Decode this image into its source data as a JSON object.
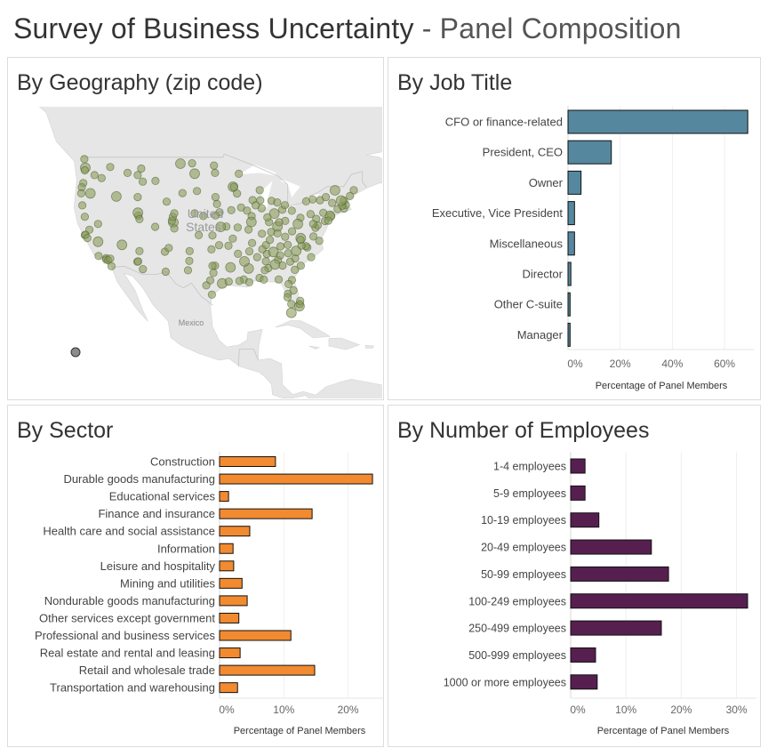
{
  "header": {
    "title_main": "Survey of Business Uncertainty",
    "title_sub": "- Panel Composition"
  },
  "panels": {
    "geography": "By Geography (zip code)",
    "job_title": "By Job Title",
    "sector": "By Sector",
    "employees": "By Number of Employees"
  },
  "map_labels": {
    "country": "United States",
    "neighbor": "Mexico"
  },
  "chart_data": [
    {
      "type": "scatter",
      "title": "By Geography (zip code)",
      "marker_color": "#8a9c5c",
      "unlocated_marker_color": "#8c8c8c",
      "points_lon_lat": [
        [
          -122.3,
          47.6
        ],
        [
          -122.4,
          47.25
        ],
        [
          -122.5,
          48.75
        ],
        [
          -122.7,
          45.5
        ],
        [
          -123,
          44.9
        ],
        [
          -123.1,
          44.05
        ],
        [
          -117.4,
          47.7
        ],
        [
          -116.2,
          43.6
        ],
        [
          -114,
          46.9
        ],
        [
          -108.5,
          45.8
        ],
        [
          -112,
          46.6
        ],
        [
          -111.3,
          47.5
        ],
        [
          -111,
          45.7
        ],
        [
          -111.9,
          40.76
        ],
        [
          -111.97,
          41.2
        ],
        [
          -111.66,
          40.23
        ],
        [
          -119.8,
          39.5
        ],
        [
          -121.5,
          38.6
        ],
        [
          -122.4,
          37.77
        ],
        [
          -122.27,
          37.8
        ],
        [
          -121.9,
          37.3
        ],
        [
          -119.8,
          36.7
        ],
        [
          -119.7,
          34.4
        ],
        [
          -118.2,
          34.05
        ],
        [
          -118.2,
          33.8
        ],
        [
          -117.8,
          33.7
        ],
        [
          -117.4,
          33.95
        ],
        [
          -117.16,
          32.7
        ],
        [
          -115.1,
          36.2
        ],
        [
          -112.07,
          33.45
        ],
        [
          -111.9,
          33.5
        ],
        [
          -110.97,
          32.2
        ],
        [
          -106.65,
          35.1
        ],
        [
          -105.9,
          35.7
        ],
        [
          -106.5,
          31.76
        ],
        [
          -104.99,
          39.74
        ],
        [
          -105.27,
          40.0
        ],
        [
          -104.8,
          38.8
        ],
        [
          -105.1,
          40.6
        ],
        [
          -104.8,
          41.1
        ],
        [
          -106.3,
          42.85
        ],
        [
          -103.2,
          44.08
        ],
        [
          -100.8,
          46.8
        ],
        [
          -96.8,
          46.9
        ],
        [
          -96.7,
          43.5
        ],
        [
          -95.9,
          41.26
        ],
        [
          -96.7,
          40.8
        ],
        [
          -97.3,
          37.7
        ],
        [
          -94.58,
          39.1
        ],
        [
          -95.7,
          39.05
        ],
        [
          -95.99,
          36.15
        ],
        [
          -97.5,
          35.47
        ],
        [
          -96.8,
          32.78
        ],
        [
          -97.3,
          32.75
        ],
        [
          -97.74,
          30.27
        ],
        [
          -98.5,
          29.42
        ],
        [
          -95.37,
          29.76
        ],
        [
          -97.4,
          27.8
        ],
        [
          -101.85,
          33.58
        ],
        [
          -101.8,
          35.2
        ],
        [
          -102.1,
          32.0
        ],
        [
          -97.1,
          31.55
        ],
        [
          -94.1,
          30.08
        ],
        [
          -93.75,
          32.5
        ],
        [
          -91.15,
          30.45
        ],
        [
          -90.07,
          29.95
        ],
        [
          -92.0,
          30.2
        ],
        [
          -92.29,
          34.75
        ],
        [
          -94.16,
          36.06
        ],
        [
          -90.05,
          35.15
        ],
        [
          -90.18,
          32.3
        ],
        [
          -86.8,
          33.52
        ],
        [
          -86.3,
          32.37
        ],
        [
          -88.04,
          30.7
        ],
        [
          -86.6,
          34.73
        ],
        [
          -86.78,
          36.16
        ],
        [
          -83.92,
          35.96
        ],
        [
          -85.3,
          35.05
        ],
        [
          -84.39,
          33.75
        ],
        [
          -81.1,
          32.08
        ],
        [
          -82.0,
          33.47
        ],
        [
          -81.03,
          34.0
        ],
        [
          -79.93,
          32.78
        ],
        [
          -82.4,
          34.85
        ],
        [
          -80.84,
          35.23
        ],
        [
          -78.64,
          35.78
        ],
        [
          -78.9,
          36.0
        ],
        [
          -79.79,
          36.07
        ],
        [
          -77.9,
          34.2
        ],
        [
          -76.29,
          36.85
        ],
        [
          -77.44,
          37.54
        ],
        [
          -79.94,
          37.27
        ],
        [
          -77.04,
          38.9
        ],
        [
          -76.6,
          39.29
        ],
        [
          -75.16,
          39.95
        ],
        [
          -79.99,
          40.44
        ],
        [
          -76.88,
          40.27
        ],
        [
          -74.0,
          40.71
        ],
        [
          -74.17,
          40.73
        ],
        [
          -72.68,
          41.76
        ],
        [
          -71.41,
          41.82
        ],
        [
          -71.06,
          42.36
        ],
        [
          -71.8,
          42.26
        ],
        [
          -70.26,
          43.66
        ],
        [
          -71.46,
          42.99
        ],
        [
          -73.2,
          44.48
        ],
        [
          -73.75,
          42.65
        ],
        [
          -76.15,
          43.05
        ],
        [
          -77.6,
          43.16
        ],
        [
          -78.88,
          42.89
        ],
        [
          -81.69,
          41.5
        ],
        [
          -82.99,
          39.96
        ],
        [
          -84.5,
          39.1
        ],
        [
          -84.19,
          39.76
        ],
        [
          -83.55,
          41.65
        ],
        [
          -83.05,
          42.33
        ],
        [
          -85.67,
          42.96
        ],
        [
          -84.55,
          42.73
        ],
        [
          -86.16,
          39.77
        ],
        [
          -85.14,
          41.08
        ],
        [
          -85.76,
          38.25
        ],
        [
          -84.5,
          38.04
        ],
        [
          -87.63,
          41.88
        ],
        [
          -87.9,
          43.04
        ],
        [
          -89.4,
          43.07
        ],
        [
          -88.0,
          44.5
        ],
        [
          -93.27,
          44.98
        ],
        [
          -93.09,
          44.95
        ],
        [
          -92.46,
          44.02
        ],
        [
          -92.1,
          46.78
        ],
        [
          -93.6,
          41.59
        ],
        [
          -91.67,
          41.98
        ],
        [
          -89.59,
          40.69
        ],
        [
          -89.65,
          39.8
        ],
        [
          -90.2,
          38.63
        ],
        [
          -93.29,
          37.2
        ],
        [
          -92.33,
          38.95
        ],
        [
          -82.46,
          27.95
        ],
        [
          -81.38,
          28.54
        ],
        [
          -81.66,
          30.33
        ],
        [
          -80.19,
          25.76
        ],
        [
          -80.14,
          26.12
        ],
        [
          -80.05,
          26.7
        ],
        [
          -81.8,
          26.14
        ],
        [
          -84.28,
          30.44
        ],
        [
          -82.32,
          29.65
        ],
        [
          -87.2,
          30.42
        ],
        [
          -81.78,
          24.55
        ],
        [
          -82.53,
          27.34
        ],
        [
          -87.57,
          37.97
        ],
        [
          -81.63,
          38.35
        ],
        [
          -96.4,
          42.5
        ],
        [
          -97.0,
          47.9
        ],
        [
          -101.3,
          48.2
        ],
        [
          -103.6,
          48.15
        ],
        [
          -100.35,
          44.37
        ],
        [
          -100.8,
          41.1
        ],
        [
          -99.1,
          40.7
        ],
        [
          -100.0,
          37.75
        ],
        [
          -120.5,
          46.6
        ],
        [
          -119.1,
          46.2
        ],
        [
          -121.3,
          44.05
        ],
        [
          -122.9,
          42.3
        ],
        [
          -122.4,
          40.6
        ],
        [
          -112.0,
          43.5
        ],
        [
          -111.65,
          35.2
        ],
        [
          -108.55,
          39.06
        ],
        [
          -84.0,
          34.5
        ],
        [
          -85.0,
          33.0
        ],
        [
          -83.5,
          32.8
        ],
        [
          -87.5,
          35.5
        ],
        [
          -88.5,
          34.2
        ],
        [
          -89.5,
          36.5
        ],
        [
          -86.0,
          37.0
        ],
        [
          -83.0,
          37.5
        ],
        [
          -80.5,
          39.5
        ],
        [
          -75.5,
          41.2
        ],
        [
          -74.5,
          40.0
        ],
        [
          -77.5,
          39.5
        ],
        [
          -80.0,
          37.0
        ],
        [
          -82.5,
          36.2
        ],
        [
          -78.0,
          41.0
        ],
        [
          -72.0,
          43.0
        ],
        [
          -69.5,
          44.5
        ],
        [
          -75.0,
          43.5
        ],
        [
          -88.8,
          42.3
        ],
        [
          -90.5,
          41.5
        ],
        [
          -86.5,
          40.5
        ],
        [
          -87.0,
          32.0
        ],
        [
          -91.0,
          33.5
        ]
      ]
    },
    {
      "type": "bar",
      "orientation": "horizontal",
      "title": "By Job Title",
      "categories": [
        "CFO or finance-related",
        "President, CEO",
        "Owner",
        "Executive, Vice President",
        "Miscellaneous",
        "Director",
        "Other C-suite",
        "Manager"
      ],
      "values": [
        68.9,
        16.6,
        5.0,
        2.5,
        2.5,
        1.1,
        0.8,
        0.8
      ],
      "xlabel": "Percentage of Panel Members",
      "xticks": [
        0,
        20,
        40,
        60
      ],
      "xtick_labels": [
        "0%",
        "20%",
        "40%",
        "60%"
      ],
      "xlim": [
        0,
        70
      ],
      "grid": true,
      "color": "#55889f"
    },
    {
      "type": "bar",
      "orientation": "horizontal",
      "title": "By Sector",
      "categories": [
        "Construction",
        "Durable goods manufacturing",
        "Educational services",
        "Finance and insurance",
        "Health care and social assistance",
        "Information",
        "Leisure and hospitality",
        "Mining and utilities",
        "Nondurable goods manufacturing",
        "Other services except government",
        "Professional and business services",
        "Real estate and rental and leasing",
        "Retail and wholesale trade",
        "Transportation and warehousing"
      ],
      "values": [
        8.7,
        23.8,
        1.4,
        14.4,
        4.7,
        2.1,
        2.2,
        3.5,
        4.3,
        3.0,
        11.1,
        3.2,
        14.8,
        2.8
      ],
      "xlabel": "Percentage of Panel Members",
      "xticks": [
        0,
        10,
        20
      ],
      "xtick_labels": [
        "0%",
        "10%",
        "20%"
      ],
      "xlim": [
        0,
        25
      ],
      "grid": true,
      "color": "#f28a30"
    },
    {
      "type": "bar",
      "orientation": "horizontal",
      "title": "By Number of Employees",
      "categories": [
        "1-4 employees",
        "5-9 employees",
        "10-19 employees",
        "20-49 employees",
        "50-99 employees",
        "100-249 employees",
        "250-499 employees",
        "500-999 employees",
        "1000 or more employees"
      ],
      "values": [
        2.6,
        2.6,
        5.1,
        14.6,
        17.7,
        32.0,
        16.4,
        4.5,
        4.8
      ],
      "xlabel": "Percentage of Panel Members",
      "xticks": [
        0,
        10,
        20,
        30
      ],
      "xtick_labels": [
        "0%",
        "10%",
        "20%",
        "30%"
      ],
      "xlim": [
        0,
        33
      ],
      "grid": true,
      "color": "#561f4f"
    }
  ]
}
